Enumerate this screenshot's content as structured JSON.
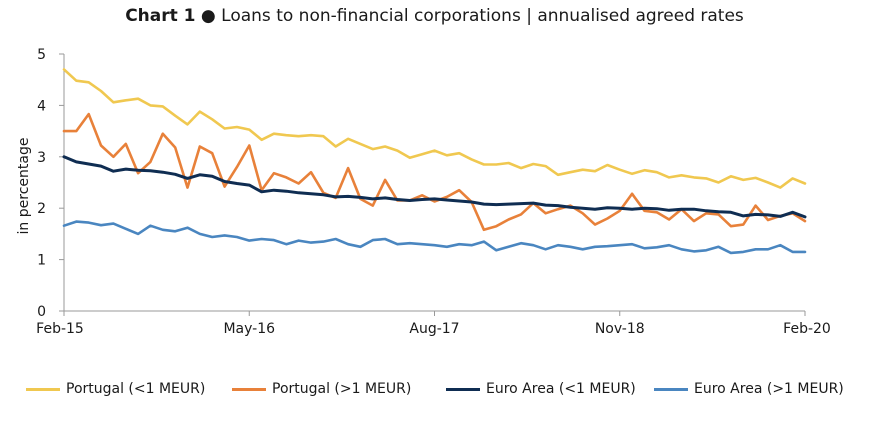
{
  "chart_data": {
    "type": "line",
    "title_bold": "Chart 1",
    "title_bullet": "●",
    "title_text": "Loans to non-financial corporations | annualised agreed rates",
    "ylabel": "in percentage",
    "xlabel": "",
    "ylim": [
      0,
      5
    ],
    "yticks": [
      "0",
      "1",
      "2",
      "3",
      "4",
      "5"
    ],
    "x_tick_labels": [
      "Feb-15",
      "May-16",
      "Aug-17",
      "Nov-18",
      "Feb-20"
    ],
    "x_tick_indices": [
      0,
      15,
      30,
      45,
      60
    ],
    "grid": false,
    "legend_position": "bottom",
    "x_start": "Feb-15",
    "x_end": "Feb-20",
    "series": [
      {
        "name": "Portugal (<1 MEUR)",
        "color": "#F0C850",
        "values": [
          4.7,
          4.48,
          4.45,
          4.28,
          4.06,
          4.1,
          4.13,
          4.0,
          3.98,
          3.8,
          3.63,
          3.88,
          3.73,
          3.55,
          3.58,
          3.53,
          3.33,
          3.45,
          3.42,
          3.4,
          3.42,
          3.4,
          3.2,
          3.35,
          3.25,
          3.15,
          3.2,
          3.12,
          2.98,
          3.05,
          3.12,
          3.03,
          3.07,
          2.95,
          2.85,
          2.85,
          2.88,
          2.78,
          2.86,
          2.82,
          2.65,
          2.7,
          2.75,
          2.72,
          2.84,
          2.75,
          2.67,
          2.74,
          2.7,
          2.6,
          2.64,
          2.6,
          2.58,
          2.5,
          2.62,
          2.55,
          2.59,
          2.5,
          2.4,
          2.58,
          2.48
        ]
      },
      {
        "name": "Portugal (>1 MEUR)",
        "color": "#E8813A",
        "values": [
          3.5,
          3.5,
          3.83,
          3.22,
          3.0,
          3.25,
          2.68,
          2.9,
          3.45,
          3.18,
          2.4,
          3.2,
          3.07,
          2.42,
          2.8,
          3.22,
          2.35,
          2.68,
          2.6,
          2.48,
          2.7,
          2.3,
          2.2,
          2.78,
          2.18,
          2.05,
          2.55,
          2.15,
          2.15,
          2.25,
          2.13,
          2.22,
          2.35,
          2.12,
          1.58,
          1.65,
          1.78,
          1.88,
          2.1,
          1.9,
          1.98,
          2.05,
          1.9,
          1.68,
          1.8,
          1.95,
          2.28,
          1.95,
          1.92,
          1.78,
          1.98,
          1.75,
          1.9,
          1.88,
          1.65,
          1.68,
          2.05,
          1.77,
          1.85,
          1.9,
          1.75
        ]
      },
      {
        "name": "Euro Area (<1 MEUR)",
        "color": "#0F2D52",
        "values": [
          3.0,
          2.9,
          2.86,
          2.82,
          2.72,
          2.76,
          2.74,
          2.73,
          2.7,
          2.66,
          2.58,
          2.65,
          2.62,
          2.52,
          2.48,
          2.45,
          2.32,
          2.35,
          2.33,
          2.3,
          2.28,
          2.26,
          2.22,
          2.23,
          2.21,
          2.18,
          2.2,
          2.17,
          2.15,
          2.17,
          2.18,
          2.16,
          2.14,
          2.12,
          2.08,
          2.07,
          2.08,
          2.09,
          2.1,
          2.06,
          2.05,
          2.02,
          2.0,
          1.98,
          2.01,
          2.0,
          1.98,
          2.0,
          1.99,
          1.96,
          1.98,
          1.98,
          1.95,
          1.93,
          1.92,
          1.85,
          1.88,
          1.87,
          1.84,
          1.92,
          1.83
        ]
      },
      {
        "name": "Euro Area (>1 MEUR)",
        "color": "#4A86C0",
        "values": [
          1.66,
          1.74,
          1.72,
          1.67,
          1.7,
          1.6,
          1.5,
          1.66,
          1.58,
          1.55,
          1.62,
          1.5,
          1.44,
          1.47,
          1.44,
          1.37,
          1.4,
          1.38,
          1.3,
          1.37,
          1.33,
          1.35,
          1.4,
          1.3,
          1.25,
          1.38,
          1.4,
          1.3,
          1.32,
          1.3,
          1.28,
          1.25,
          1.3,
          1.28,
          1.35,
          1.18,
          1.25,
          1.32,
          1.28,
          1.2,
          1.28,
          1.25,
          1.2,
          1.25,
          1.26,
          1.28,
          1.3,
          1.22,
          1.24,
          1.28,
          1.2,
          1.16,
          1.18,
          1.25,
          1.13,
          1.15,
          1.2,
          1.2,
          1.28,
          1.15,
          1.15
        ]
      }
    ]
  }
}
